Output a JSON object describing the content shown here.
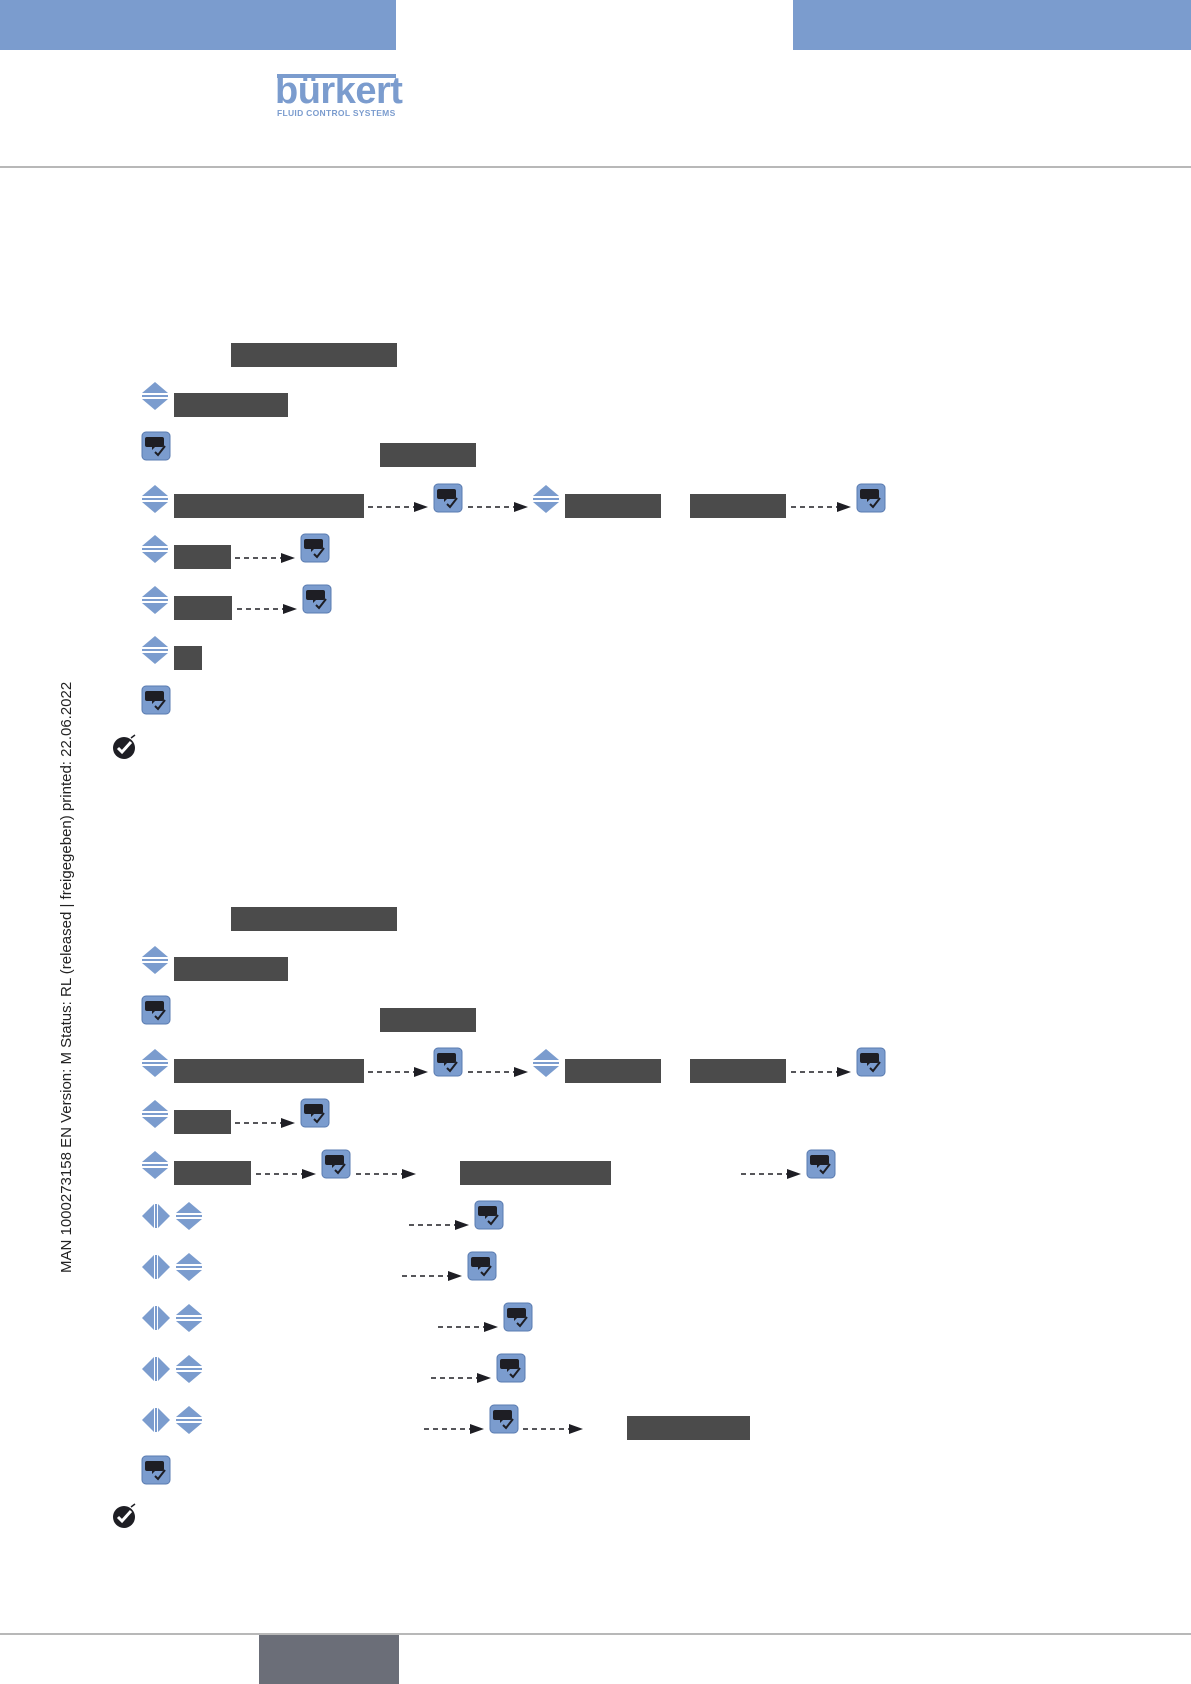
{
  "colors": {
    "header_band": "#7b9cce",
    "brand": "#7b9cce",
    "rule": "#b8b8b8",
    "display_box": "#4b4b4b",
    "button": "#7b9cce",
    "button_glyph": "#1e1e24",
    "footer_tab": "#6b6e78"
  },
  "brand": {
    "name": "bürkert",
    "tagline": "FLUID CONTROL SYSTEMS"
  },
  "side_text": "MAN  1000273158  EN  Version: M Status: RL (released | freigegeben)  printed: 22.06.2022",
  "icons": {
    "ok": "confirm-key-icon",
    "updown": "up-down-arrow-keys-icon",
    "leftright": "left-right-arrow-keys-icon",
    "arrow": "dashed-arrow-icon",
    "result": "checkmark-result-icon"
  },
  "procedures": [
    {
      "name": "procedure-1",
      "steps": [
        "display-box",
        "updown + display-box",
        "confirm + display-box",
        "updown + display-box -> confirm -> updown + display-box + display-box -> confirm",
        "updown + display-box -> confirm",
        "updown + display-box -> confirm",
        "updown + display-box",
        "confirm",
        "result"
      ]
    },
    {
      "name": "procedure-2",
      "steps": [
        "display-box",
        "updown + display-box",
        "confirm + display-box",
        "updown + display-box -> confirm -> updown + display-box + display-box -> confirm",
        "updown + display-box -> confirm",
        "updown + display-box -> confirm -> display-box -> confirm",
        "leftright + updown -> confirm",
        "leftright + updown -> confirm",
        "leftright + updown -> confirm",
        "leftright + updown -> confirm",
        "leftright + updown -> confirm -> display-box",
        "confirm",
        "result"
      ]
    }
  ]
}
